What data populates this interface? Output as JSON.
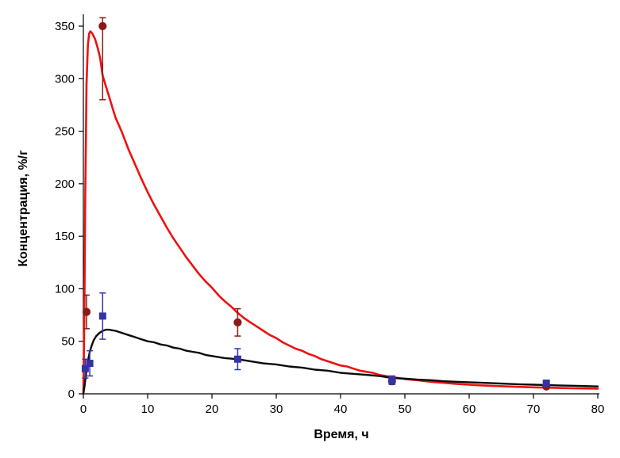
{
  "chart_data": {
    "type": "line",
    "title": "",
    "xlabel": "Время, ч",
    "ylabel": "Концентрация, %/г",
    "xlim": [
      0,
      80
    ],
    "ylim": [
      0,
      350
    ],
    "xticks": [
      0,
      10,
      20,
      30,
      40,
      50,
      60,
      70,
      80
    ],
    "yticks": [
      0,
      50,
      100,
      150,
      200,
      250,
      300,
      350
    ],
    "grid": false,
    "legend": "none",
    "series": [
      {
        "name": "red-curve",
        "kind": "curve",
        "color": "#ee1111",
        "width": 2.6,
        "points": [
          [
            0,
            0
          ],
          [
            0.15,
            70
          ],
          [
            0.3,
            190
          ],
          [
            0.5,
            295
          ],
          [
            0.7,
            332
          ],
          [
            0.9,
            343
          ],
          [
            1.1,
            345
          ],
          [
            1.4,
            343
          ],
          [
            1.8,
            338
          ],
          [
            2.2,
            330
          ],
          [
            2.6,
            320
          ],
          [
            3,
            303
          ],
          [
            3.5,
            293
          ],
          [
            4,
            283
          ],
          [
            4.5,
            273
          ],
          [
            5,
            263
          ],
          [
            6,
            249
          ],
          [
            7,
            233
          ],
          [
            8,
            219
          ],
          [
            9,
            205
          ],
          [
            10,
            192
          ],
          [
            11,
            180
          ],
          [
            12,
            169
          ],
          [
            13,
            158
          ],
          [
            14,
            148
          ],
          [
            15,
            139
          ],
          [
            16,
            130
          ],
          [
            17,
            122
          ],
          [
            18,
            114
          ],
          [
            19,
            107
          ],
          [
            20,
            101
          ],
          [
            21,
            94
          ],
          [
            22,
            88
          ],
          [
            23,
            83
          ],
          [
            24,
            77
          ],
          [
            25,
            72
          ],
          [
            26,
            68
          ],
          [
            27,
            64
          ],
          [
            28,
            60
          ],
          [
            29,
            56
          ],
          [
            30,
            53
          ],
          [
            31,
            49
          ],
          [
            32,
            46
          ],
          [
            33,
            43
          ],
          [
            34,
            41
          ],
          [
            35,
            38
          ],
          [
            36,
            36
          ],
          [
            37,
            33
          ],
          [
            38,
            31
          ],
          [
            39,
            29
          ],
          [
            40,
            27
          ],
          [
            41,
            26
          ],
          [
            42,
            24
          ],
          [
            43,
            22
          ],
          [
            44,
            21
          ],
          [
            45,
            20
          ],
          [
            46,
            18
          ],
          [
            47,
            17
          ],
          [
            48,
            16
          ],
          [
            49,
            15
          ],
          [
            50,
            14
          ],
          [
            52,
            13
          ],
          [
            54,
            11.5
          ],
          [
            56,
            10.5
          ],
          [
            58,
            9.5
          ],
          [
            60,
            8.7
          ],
          [
            62,
            8
          ],
          [
            64,
            7.5
          ],
          [
            66,
            7
          ],
          [
            68,
            6.6
          ],
          [
            70,
            6.2
          ],
          [
            72,
            5.9
          ],
          [
            74,
            5.6
          ],
          [
            76,
            5.3
          ],
          [
            78,
            5.1
          ],
          [
            80,
            4.9
          ]
        ]
      },
      {
        "name": "black-curve",
        "kind": "curve",
        "color": "#0a0a0a",
        "width": 2.4,
        "points": [
          [
            0,
            0
          ],
          [
            0.2,
            8
          ],
          [
            0.4,
            18
          ],
          [
            0.6,
            27
          ],
          [
            0.8,
            34
          ],
          [
            1,
            40
          ],
          [
            1.3,
            46
          ],
          [
            1.6,
            51
          ],
          [
            2,
            55
          ],
          [
            2.5,
            58
          ],
          [
            3,
            60
          ],
          [
            3.5,
            61
          ],
          [
            4,
            61
          ],
          [
            4.5,
            60.5
          ],
          [
            5,
            60
          ],
          [
            6,
            58
          ],
          [
            7,
            56
          ],
          [
            8,
            54
          ],
          [
            9,
            52
          ],
          [
            10,
            50
          ],
          [
            11,
            49
          ],
          [
            12,
            47
          ],
          [
            13,
            46
          ],
          [
            14,
            44
          ],
          [
            15,
            43
          ],
          [
            16,
            41
          ],
          [
            17,
            40
          ],
          [
            18,
            39
          ],
          [
            19,
            37
          ],
          [
            20,
            36
          ],
          [
            22,
            34
          ],
          [
            24,
            33
          ],
          [
            26,
            31
          ],
          [
            28,
            29
          ],
          [
            30,
            28
          ],
          [
            32,
            26
          ],
          [
            34,
            25
          ],
          [
            36,
            23
          ],
          [
            38,
            22
          ],
          [
            40,
            20
          ],
          [
            42,
            19
          ],
          [
            44,
            18
          ],
          [
            46,
            17
          ],
          [
            48,
            15
          ],
          [
            50,
            14.5
          ],
          [
            52,
            13.5
          ],
          [
            54,
            13
          ],
          [
            56,
            12
          ],
          [
            58,
            11.5
          ],
          [
            60,
            11
          ],
          [
            62,
            10.5
          ],
          [
            64,
            10
          ],
          [
            66,
            9.5
          ],
          [
            68,
            9
          ],
          [
            70,
            8.7
          ],
          [
            72,
            8.4
          ],
          [
            74,
            8
          ],
          [
            76,
            7.7
          ],
          [
            78,
            7.4
          ],
          [
            80,
            7
          ]
        ]
      },
      {
        "name": "dark-red-circles",
        "kind": "scatter",
        "marker": "circle",
        "color": "#8b1a1a",
        "points": [
          [
            0.5,
            78,
            16,
            16
          ],
          [
            3,
            350,
            70,
            8
          ],
          [
            24,
            68,
            13,
            13
          ],
          [
            48,
            12,
            3,
            3
          ],
          [
            72,
            7,
            2,
            2
          ]
        ]
      },
      {
        "name": "blue-squares",
        "kind": "scatter",
        "marker": "square",
        "color": "#3333a6",
        "points": [
          [
            0.3,
            24,
            9,
            9
          ],
          [
            1,
            29,
            12,
            12
          ],
          [
            3,
            74,
            22,
            22
          ],
          [
            24,
            33,
            10,
            10
          ],
          [
            48,
            13,
            4,
            4
          ],
          [
            72,
            10,
            3,
            3
          ]
        ]
      }
    ]
  }
}
